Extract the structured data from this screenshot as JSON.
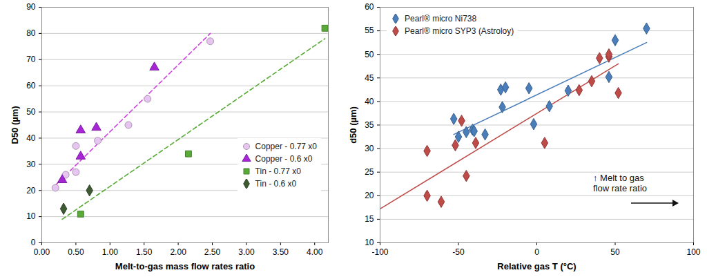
{
  "chart_data": [
    {
      "type": "scatter",
      "x_label": "Melt-to-gas mass flow rates ratio",
      "y_label": "D50 (µm)",
      "xlim": [
        0,
        4.2
      ],
      "xticks": [
        {
          "value": 0,
          "label": "0.00"
        },
        {
          "value": 0.5,
          "label": "0.50"
        },
        {
          "value": 1,
          "label": "1.00"
        },
        {
          "value": 1.5,
          "label": "1.50"
        },
        {
          "value": 2,
          "label": "2.00"
        },
        {
          "value": 2.5,
          "label": "2.50"
        },
        {
          "value": 3,
          "label": "3.00"
        },
        {
          "value": 3.5,
          "label": "3.50"
        },
        {
          "value": 4,
          "label": "4.00"
        }
      ],
      "ylim": [
        0,
        90
      ],
      "yticks": [
        0,
        10,
        20,
        30,
        40,
        50,
        60,
        70,
        80,
        90
      ],
      "grid": "y",
      "legend": "right",
      "series": [
        {
          "name": "Copper - 0.77 x0",
          "color": "#e6c6f0",
          "marker": "circle",
          "x": [
            0.2,
            0.35,
            0.5,
            0.5,
            0.82,
            1.27,
            1.55,
            2.47
          ],
          "values": [
            21,
            26,
            27,
            37,
            39,
            45,
            55,
            77
          ]
        },
        {
          "name": "Copper - 0.6 x0",
          "color": "#a626d6",
          "marker": "triangle",
          "x": [
            0.3,
            0.57,
            0.57,
            0.8,
            1.65
          ],
          "values": [
            24,
            43,
            33,
            44,
            67
          ]
        },
        {
          "name": "Tin - 0.77 x0",
          "color": "#5aaa3a",
          "marker": "square",
          "x": [
            0.57,
            2.15,
            4.15
          ],
          "values": [
            11,
            34,
            82
          ]
        },
        {
          "name": "Tin - 0.6 x0",
          "color": "#3e5a33",
          "marker": "diamond",
          "x": [
            0.32,
            0.7
          ],
          "values": [
            13,
            20
          ]
        }
      ],
      "trend_lines": [
        {
          "color": "#cc44dd",
          "line_style": "dashed",
          "x": [
            0.2,
            2.47
          ],
          "values": [
            22,
            80
          ]
        },
        {
          "color": "#55aa33",
          "line_style": "dashed",
          "x": [
            0.3,
            4.15
          ],
          "values": [
            9,
            78
          ]
        }
      ]
    },
    {
      "type": "scatter",
      "x_label": "Relative gas T (°C)",
      "y_label": "d50 (µm)",
      "xlim": [
        -100,
        100
      ],
      "xticks": [
        -100,
        -50,
        0,
        50,
        100
      ],
      "ylim": [
        10,
        60
      ],
      "yticks": [
        10,
        15,
        20,
        25,
        30,
        35,
        40,
        45,
        50,
        55,
        60
      ],
      "grid": "y",
      "legend": "top-left",
      "annotation": [
        "↑ Melt to gas",
        "flow rate ratio"
      ],
      "series": [
        {
          "name": "Pearl® micro Ni738",
          "color": "#4a7ebb",
          "marker": "diamond",
          "x": [
            -53,
            -50,
            -45,
            -41,
            -40,
            -33,
            -23,
            -22,
            -20,
            -5,
            -2,
            8,
            20,
            46,
            50,
            70
          ],
          "values": [
            36.3,
            32.5,
            33.5,
            34,
            33.7,
            33,
            42.5,
            38.8,
            43,
            42.8,
            35.2,
            39,
            42.3,
            45.2,
            53,
            55.5
          ]
        },
        {
          "name": "Pearl® micro SYP3 (Astroloy)",
          "color": "#be4b48",
          "marker": "diamond",
          "x": [
            -70,
            -70,
            -61,
            -52,
            -48,
            -45,
            -39,
            5,
            27,
            35,
            40,
            46,
            46,
            52
          ],
          "values": [
            29.5,
            20,
            18.7,
            30.7,
            35.9,
            24.2,
            31.2,
            31.2,
            42.4,
            44.3,
            49.2,
            49.5,
            50,
            41.8
          ]
        }
      ],
      "trend_lines": [
        {
          "color": "#4a7ebb",
          "line_style": "solid",
          "x": [
            -53,
            70
          ],
          "values": [
            33,
            52.5
          ]
        },
        {
          "color": "#be4b48",
          "line_style": "solid",
          "x": [
            -100,
            52
          ],
          "values": [
            17.2,
            48
          ]
        }
      ]
    }
  ]
}
